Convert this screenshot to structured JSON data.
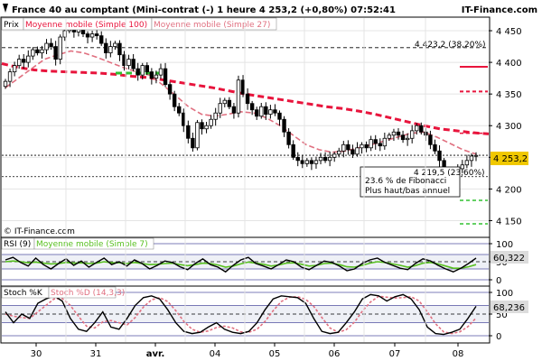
{
  "header": {
    "title": "France 40 au comptant (Mini-contrat  (-)   1 heure    4 253,2 (+0,80%)    07:52:41",
    "brand": "IT-Finance.com"
  },
  "panels": {
    "price": {
      "legend": [
        {
          "text": "Prix",
          "color": "#000000"
        },
        {
          "text": "Moyenne mobile (Simple 100)",
          "color": "#e8143c"
        },
        {
          "text": "Moyenne mobile (Simple 27)",
          "color": "#e07080"
        }
      ],
      "copyright": "© IT-Finance.com",
      "last_price_label": "4 253,2",
      "fib_label": "4 423,2 (38,20%)",
      "fib_label2": "4 219,5 (23,60%)",
      "tooltip_line1": "23.6 % de Fibonacci",
      "tooltip_line2": "Plus haut/bas annuel"
    },
    "rsi": {
      "legend": [
        {
          "text": "RSI (9)",
          "color": "#000000"
        },
        {
          "text": "Moyenne mobile (Simple 7)",
          "color": "#58c020"
        }
      ],
      "last_label": "60,322"
    },
    "stoch": {
      "legend": [
        {
          "text": "Stoch %K",
          "color": "#000000"
        },
        {
          "text": "Stoch %D (14,3,3)",
          "color": "#e07080"
        }
      ],
      "last_label": "68,236"
    }
  },
  "chart_data": [
    {
      "type": "candlestick",
      "title": "France 40 au comptant (Mini-contrat  (-)   1 heure",
      "x_categories": [
        "30",
        "31",
        "avr.",
        "04",
        "05",
        "06",
        "07",
        "08"
      ],
      "y_ticks": [
        4150,
        4200,
        4250,
        4300,
        4350,
        4400,
        4450
      ],
      "y_tick_labels": [
        "4 150",
        "4 200",
        "4 250",
        "4 300",
        "4 350",
        "4 400",
        "4 450"
      ],
      "ylim": [
        4125,
        4470
      ],
      "close_series": [
        4370,
        4385,
        4395,
        4405,
        4400,
        4410,
        4420,
        4415,
        4420,
        4430,
        4425,
        4405,
        4440,
        4450,
        4455,
        4448,
        4452,
        4445,
        4440,
        4445,
        4442,
        4430,
        4415,
        4425,
        4430,
        4412,
        4395,
        4405,
        4390,
        4380,
        4395,
        4385,
        4375,
        4380,
        4390,
        4365,
        4350,
        4330,
        4320,
        4300,
        4280,
        4265,
        4305,
        4295,
        4300,
        4310,
        4320,
        4335,
        4340,
        4330,
        4320,
        4372,
        4350,
        4335,
        4325,
        4315,
        4330,
        4318,
        4325,
        4320,
        4310,
        4290,
        4270,
        4250,
        4245,
        4240,
        4245,
        4240,
        4245,
        4250,
        4245,
        4250,
        4255,
        4260,
        4270,
        4262,
        4255,
        4265,
        4270,
        4265,
        4278,
        4272,
        4268,
        4280,
        4285,
        4290,
        4285,
        4278,
        4280,
        4292,
        4300,
        4290,
        4285,
        4270,
        4260,
        4245,
        4230,
        4218,
        4222,
        4232,
        4238,
        4245,
        4252,
        4253
      ],
      "moving_averages": [
        {
          "name": "Moyenne mobile (Simple 100)",
          "color": "#e8143c",
          "values": [
            4398,
            4392,
            4388,
            4386,
            4385,
            4384,
            4383,
            4381,
            4378,
            4376,
            4372,
            4368,
            4364,
            4360,
            4355,
            4350,
            4346,
            4342,
            4338,
            4334,
            4330,
            4327,
            4323,
            4318,
            4312,
            4306,
            4300,
            4295,
            4292,
            4289,
            4287
          ]
        },
        {
          "name": "Moyenne mobile (Simple 27)",
          "color": "#e07080",
          "values": [
            4360,
            4375,
            4390,
            4405,
            4412,
            4418,
            4415,
            4408,
            4400,
            4392,
            4385,
            4380,
            4365,
            4348,
            4330,
            4318,
            4315,
            4318,
            4322,
            4320,
            4312,
            4300,
            4285,
            4270,
            4262,
            4258,
            4260,
            4265,
            4270,
            4276,
            4282,
            4288,
            4290,
            4282,
            4272,
            4262,
            4255
          ]
        }
      ],
      "horizontal_levels": [
        {
          "value": 4423.2,
          "label": "4 423,2 (38,20%)",
          "style": "dashed"
        },
        {
          "value": 4253.2,
          "label": "4 253,2",
          "style": "dotted"
        },
        {
          "value": 4219.5,
          "label": "4 219,5 (23,60%)",
          "style": "dotted"
        }
      ],
      "last_value": 4253.2,
      "change": "+0,80%"
    },
    {
      "type": "line",
      "title": "RSI (9)",
      "ylim": [
        0,
        100
      ],
      "y_ticks": [
        0,
        50,
        100
      ],
      "series": [
        {
          "name": "RSI (9)",
          "color": "#000000",
          "values": [
            55,
            62,
            48,
            38,
            60,
            42,
            30,
            45,
            58,
            40,
            52,
            35,
            48,
            60,
            42,
            50,
            38,
            55,
            45,
            30,
            40,
            52,
            48,
            36,
            28,
            45,
            58,
            42,
            35,
            22,
            40,
            55,
            62,
            45,
            38,
            30,
            42,
            55,
            50,
            35,
            28,
            40,
            52,
            48,
            38,
            25,
            30,
            45,
            55,
            60,
            48,
            40,
            32,
            28,
            45,
            58,
            52,
            40,
            30,
            22,
            32,
            45,
            60
          ]
        },
        {
          "name": "Moyenne mobile (Simple 7)",
          "color": "#58c020",
          "values": [
            50,
            52,
            50,
            47,
            49,
            46,
            44,
            45,
            48,
            46,
            47,
            45,
            46,
            50,
            47,
            47,
            45,
            48,
            45,
            42,
            43,
            45,
            46,
            42,
            39,
            42,
            46,
            45,
            41,
            35,
            38,
            44,
            49,
            46,
            43,
            38,
            41,
            46,
            47,
            43,
            38,
            40,
            45,
            46,
            42,
            36,
            35,
            40,
            46,
            50,
            48,
            44,
            40,
            35,
            39,
            46,
            48,
            44,
            38,
            32,
            32,
            36,
            42
          ]
        }
      ],
      "last_value": 60.322
    },
    {
      "type": "line",
      "title": "Stoch %K",
      "ylim": [
        0,
        100
      ],
      "y_ticks": [
        0,
        50,
        100
      ],
      "series": [
        {
          "name": "Stoch %K",
          "color": "#000000",
          "values": [
            55,
            30,
            50,
            40,
            75,
            85,
            92,
            80,
            40,
            15,
            10,
            30,
            55,
            20,
            15,
            40,
            70,
            88,
            92,
            85,
            60,
            30,
            10,
            5,
            8,
            20,
            30,
            15,
            8,
            5,
            10,
            30,
            60,
            85,
            92,
            90,
            88,
            75,
            40,
            10,
            5,
            8,
            30,
            55,
            85,
            95,
            92,
            80,
            90,
            95,
            85,
            60,
            20,
            5,
            3,
            8,
            15,
            40,
            68
          ]
        },
        {
          "name": "Stoch %D (14,3,3)",
          "color": "#e07080",
          "values": [
            50,
            45,
            42,
            40,
            55,
            70,
            85,
            86,
            70,
            45,
            22,
            18,
            32,
            35,
            30,
            25,
            42,
            66,
            83,
            88,
            79,
            58,
            33,
            15,
            8,
            11,
            19,
            22,
            18,
            9,
            8,
            15,
            33,
            58,
            79,
            89,
            90,
            84,
            68,
            42,
            18,
            8,
            14,
            31,
            57,
            78,
            91,
            89,
            87,
            88,
            90,
            80,
            55,
            28,
            9,
            5,
            9,
            21,
            41
          ]
        }
      ],
      "last_value": 68.236
    }
  ]
}
